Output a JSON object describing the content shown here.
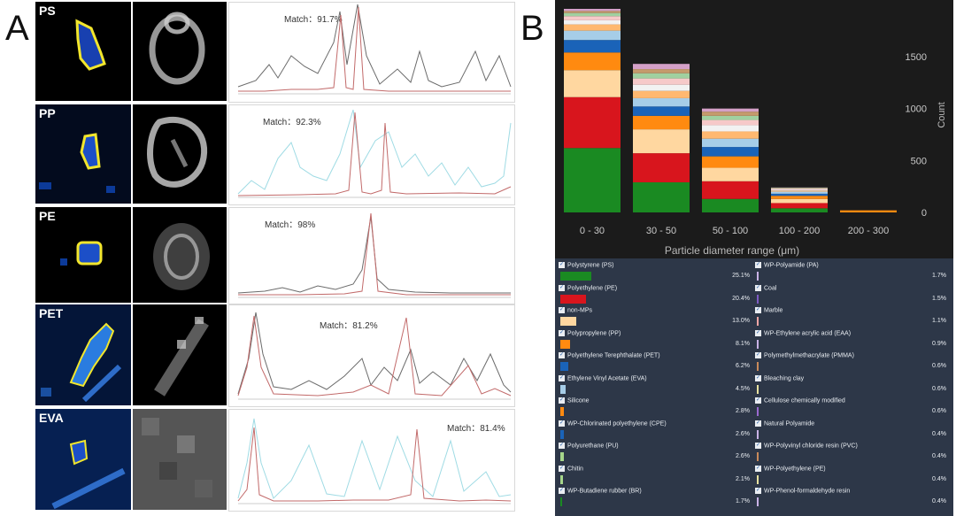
{
  "panel_labels": {
    "a": "A",
    "b": "B"
  },
  "panel_a": {
    "rows": [
      {
        "label": "PS",
        "match": "Match：91.7%",
        "colors": [
          "#6b6b6b",
          "#c26a6a"
        ]
      },
      {
        "label": "PP",
        "match": "Match：92.3%",
        "colors": [
          "#9fdbe4",
          "#c26a6a"
        ]
      },
      {
        "label": "PE",
        "match": "Match：98%",
        "colors": [
          "#6b6b6b",
          "#c26a6a"
        ]
      },
      {
        "label": "PET",
        "match": "Match：81.2%",
        "colors": [
          "#6b6b6b",
          "#c26a6a"
        ]
      },
      {
        "label": "EVA",
        "match": "Match：81.4%",
        "colors": [
          "#9fdbe4",
          "#c26a6a"
        ]
      }
    ]
  },
  "chart_data": {
    "type": "bar",
    "stacked": true,
    "categories": [
      "0 - 30",
      "30 - 50",
      "50 - 100",
      "100 - 200",
      "200 - 300"
    ],
    "totals": [
      1960,
      1430,
      1000,
      240,
      20
    ],
    "xlabel": "Particle diameter range (μm)",
    "ylabel": "Count",
    "ylim": [
      0,
      1960
    ],
    "yticks": [
      0,
      500,
      1000,
      1500
    ],
    "grid": false,
    "segment_colors": [
      "#1a8a22",
      "#d8151d",
      "#ffd7a0",
      "#ff8a10",
      "#1a63b8",
      "#a6cde8",
      "#ffb870",
      "#f2f2f2",
      "#f6c9c9",
      "#a0d0a0",
      "#c49a6c",
      "#d4a0c8"
    ],
    "segments_per_bar": [
      [
        620,
        490,
        260,
        170,
        120,
        90,
        60,
        40,
        40,
        30,
        20,
        20
      ],
      [
        290,
        280,
        230,
        130,
        90,
        80,
        70,
        60,
        60,
        50,
        40,
        50
      ],
      [
        130,
        170,
        130,
        110,
        90,
        80,
        70,
        60,
        50,
        40,
        40,
        30
      ],
      [
        40,
        50,
        40,
        30,
        20,
        20,
        10,
        10,
        10,
        5,
        3,
        2
      ],
      [
        0,
        0,
        0,
        20,
        0,
        0,
        0,
        0,
        0,
        0,
        0,
        0
      ]
    ],
    "legend": [
      {
        "name": "Polystyrene (PS)",
        "percent": "25.1%",
        "value": 25.1,
        "color": "#1a8a22"
      },
      {
        "name": "Polyethylene (PE)",
        "percent": "20.4%",
        "value": 20.4,
        "color": "#d8151d"
      },
      {
        "name": "non-MPs",
        "percent": "13.0%",
        "value": 13.0,
        "color": "#ffd7a0"
      },
      {
        "name": "Polypropylene (PP)",
        "percent": "8.1%",
        "value": 8.1,
        "color": "#ff8a10"
      },
      {
        "name": "Polyethylene Terephthalate (PET)",
        "percent": "6.2%",
        "value": 6.2,
        "color": "#1a63b8"
      },
      {
        "name": "Ethylene Vinyl Acetate (EVA)",
        "percent": "4.5%",
        "value": 4.5,
        "color": "#a6cde8"
      },
      {
        "name": "Silicone",
        "percent": "2.8%",
        "value": 2.8,
        "color": "#ff8a10"
      },
      {
        "name": "WP-Chlorinated polyethylene (CPE)",
        "percent": "2.6%",
        "value": 2.6,
        "color": "#1a63b8"
      },
      {
        "name": "Polyurethane (PU)",
        "percent": "2.6%",
        "value": 2.6,
        "color": "#a6d68a"
      },
      {
        "name": "Chitin",
        "percent": "2.1%",
        "value": 2.1,
        "color": "#a6d68a"
      },
      {
        "name": "WP-Butadiene rubber (BR)",
        "percent": "1.7%",
        "value": 1.7,
        "color": "#1a8a22"
      },
      {
        "name": "WP-Polyamide (PA)",
        "percent": "1.7%",
        "value": 1.7,
        "color": "#c9b2e6"
      },
      {
        "name": "Coal",
        "percent": "1.5%",
        "value": 1.5,
        "color": "#7e5bc4"
      },
      {
        "name": "Marble",
        "percent": "1.1%",
        "value": 1.1,
        "color": "#f4a6a6"
      },
      {
        "name": "WP-Ethylene acrylic acid (EAA)",
        "percent": "0.9%",
        "value": 0.9,
        "color": "#c9b2e6"
      },
      {
        "name": "Polymethylmethacrylate (PMMA)",
        "percent": "0.6%",
        "value": 0.6,
        "color": "#c98a5a"
      },
      {
        "name": "Bleaching clay",
        "percent": "0.6%",
        "value": 0.6,
        "color": "#e8e2a0"
      },
      {
        "name": "Cellulose chemically modified",
        "percent": "0.6%",
        "value": 0.6,
        "color": "#9a6ad0"
      },
      {
        "name": "Natural Polyamide",
        "percent": "0.4%",
        "value": 0.4,
        "color": "#c9b2e6"
      },
      {
        "name": "WP-Polyvinyl chloride resin (PVC)",
        "percent": "0.4%",
        "value": 0.4,
        "color": "#c98a5a"
      },
      {
        "name": "WP-Polyethylene (PE)",
        "percent": "0.4%",
        "value": 0.4,
        "color": "#e8e2a0"
      },
      {
        "name": "WP-Phenol-formaldehyde resin",
        "percent": "0.4%",
        "value": 0.4,
        "color": "#c9b2e6"
      }
    ]
  }
}
